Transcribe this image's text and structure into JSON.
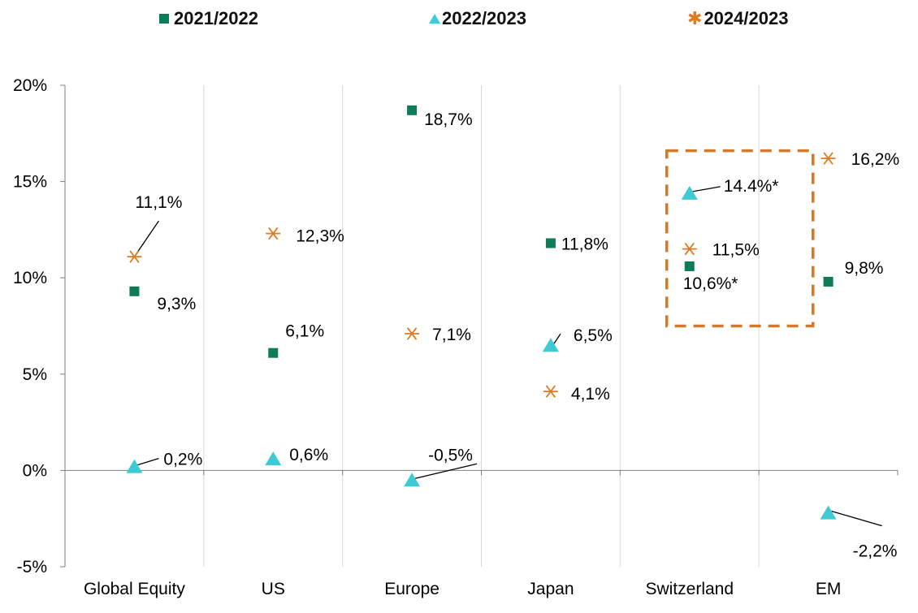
{
  "chart_data": {
    "type": "scatter",
    "categories": [
      "Global Equity",
      "US",
      "Europe",
      "Japan",
      "Switzerland",
      "EM"
    ],
    "y_ticks": [
      "20%",
      "15%",
      "10%",
      "5%",
      "0%",
      "-5%"
    ],
    "ylim": [
      -5,
      20
    ],
    "grid": "vertical",
    "legend_position": "top",
    "series": [
      {
        "name": "2021/2022",
        "marker": "square",
        "color": "#0e7c55",
        "values": [
          9.3,
          6.1,
          18.7,
          11.8,
          10.6,
          9.8
        ],
        "labels": [
          "9,3%",
          "6,1%",
          "18,7%",
          "11,8%",
          "10,6%*",
          "9,8%"
        ]
      },
      {
        "name": "2022/2023",
        "marker": "triangle",
        "color": "#3ecbd3",
        "values": [
          0.2,
          0.6,
          -0.5,
          6.5,
          14.4,
          -2.2
        ],
        "labels": [
          "0,2%",
          "0,6%",
          "-0,5%",
          "6,5%",
          "14.4%*",
          "-2,2%"
        ]
      },
      {
        "name": "2024/2023",
        "marker": "asterisk",
        "color": "#e07b22",
        "values": [
          11.1,
          12.3,
          7.1,
          4.1,
          11.5,
          16.2
        ],
        "labels": [
          "11,1%",
          "12,3%",
          "7,1%",
          "4,1%",
          "11,5%",
          "16,2%"
        ]
      }
    ],
    "highlight_box": {
      "category": "Switzerland",
      "color": "#d4792a",
      "style": "dashed"
    }
  }
}
